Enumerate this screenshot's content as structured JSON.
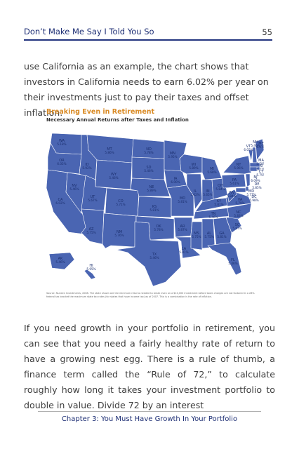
{
  "header": {
    "title": "Don’t Make Me Say I Told You So",
    "page_number": "55"
  },
  "body": {
    "paragraph_1": "use California as an example, the chart shows that investors in California needs to earn 6.02% per year on their investments just to pay their taxes and offset inflation.",
    "paragraph_2": "If you need growth in your portfolio in retirement, you can see that you need a fairly healthy rate of return to have a growing nest egg. There is a rule of thumb, a finance term called the “Rule of 72,” to calculate roughly how long it takes your investment portfolio to double in value. Divide 72 by an interest"
  },
  "figure": {
    "title": "Breaking Even in Retirement",
    "subtitle": "Necessary Annual Returns after Taxes and Inflation",
    "source": "Source: Nuveen Investments, 2008. The state shown are the minimum returns needed to break even on a $10,000 investment before taxes charges are not factored in a 28% federal tax bracket the maximum state tax rates (for states that have income tax) as of 2007. This is a combination is the rate of inflation.",
    "colors": {
      "map_fill": "#4a65b2",
      "border": "#ffffff",
      "label": "#1b2f6e"
    },
    "states": [
      {
        "abbr": "WA",
        "value": "5.18%"
      },
      {
        "abbr": "OR",
        "value": "6.05%"
      },
      {
        "abbr": "CA",
        "value": "6.02%"
      },
      {
        "abbr": "NV",
        "value": "5.46%"
      },
      {
        "abbr": "ID",
        "value": "5.92%"
      },
      {
        "abbr": "MT",
        "value": "5.86%"
      },
      {
        "abbr": "WY",
        "value": "5.46%"
      },
      {
        "abbr": "UT",
        "value": "5.67%"
      },
      {
        "abbr": "AZ",
        "value": "5.75%"
      },
      {
        "abbr": "CO",
        "value": "5.71%"
      },
      {
        "abbr": "NM",
        "value": "5.76%"
      },
      {
        "abbr": "ND",
        "value": "5.78%"
      },
      {
        "abbr": "SD",
        "value": "5.46%"
      },
      {
        "abbr": "NE",
        "value": "5.89%"
      },
      {
        "abbr": "KS",
        "value": "5.81%"
      },
      {
        "abbr": "OK",
        "value": "5.78%"
      },
      {
        "abbr": "TX",
        "value": "5.46%"
      },
      {
        "abbr": "MN",
        "value": "5.95%"
      },
      {
        "abbr": "IA",
        "value": "6.00%"
      },
      {
        "abbr": "MO",
        "value": "5.81%"
      },
      {
        "abbr": "AR",
        "value": "5.87%"
      },
      {
        "abbr": "LA",
        "value": "5.81%"
      },
      {
        "abbr": "WI",
        "value": "5.89%"
      },
      {
        "abbr": "IL",
        "value": "5.62%"
      },
      {
        "abbr": "MS",
        "value": "5.75%"
      },
      {
        "abbr": "MI",
        "value": "5.68%"
      },
      {
        "abbr": "IN",
        "value": "5.65%"
      },
      {
        "abbr": "KY",
        "value": "5.81%"
      },
      {
        "abbr": "TN",
        "value": "5.46%"
      },
      {
        "abbr": "AL",
        "value": "5.75%"
      },
      {
        "abbr": "OH",
        "value": "5.84%"
      },
      {
        "abbr": "GA",
        "value": "5.81%"
      },
      {
        "abbr": "FL",
        "value": "5.46%"
      },
      {
        "abbr": "SC",
        "value": "5.87%"
      },
      {
        "abbr": "NC",
        "value": "5.83%"
      },
      {
        "abbr": "VA",
        "value": "5.79%"
      },
      {
        "abbr": "WV",
        "value": "5.84%"
      },
      {
        "abbr": "PA",
        "value": "5.61%"
      },
      {
        "abbr": "NY",
        "value": "5.96%"
      },
      {
        "abbr": "VT",
        "value": "6.05%"
      },
      {
        "abbr": "NH",
        "value": "5.46%"
      },
      {
        "abbr": "ME",
        "value": "6.07%"
      },
      {
        "abbr": "MA",
        "value": "5.78%"
      },
      {
        "abbr": "RI",
        "value": "5.77%"
      },
      {
        "abbr": "CT",
        "value": "5.75%"
      },
      {
        "abbr": "NJ",
        "value": "6.09%"
      },
      {
        "abbr": "DE",
        "value": "5.85%"
      },
      {
        "abbr": "MD",
        "value": "5.77%"
      },
      {
        "abbr": "DC",
        "value": "5.98%"
      },
      {
        "abbr": "AK",
        "value": "5.46%"
      },
      {
        "abbr": "HI",
        "value": "5.95%"
      }
    ]
  },
  "footer": {
    "chapter": "Chapter 3: You Must Have Growth In Your Portfolio"
  }
}
